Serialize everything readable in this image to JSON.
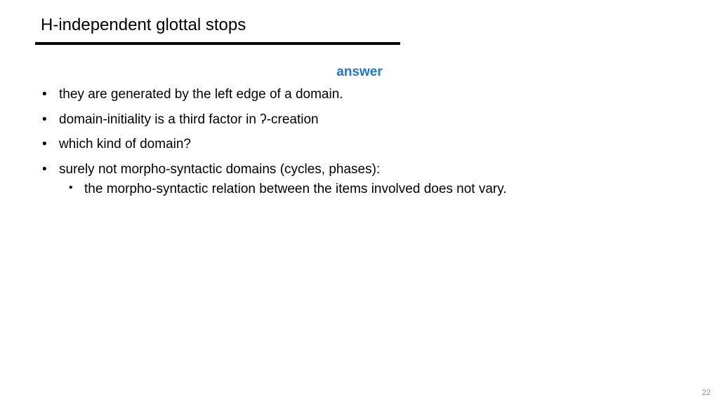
{
  "title": "H-independent glottal stops",
  "answer_label": "answer",
  "bullets": {
    "b1": "they are generated by the left edge of a domain.",
    "b2": "domain-initiality is a third factor in ʔ-creation",
    "b3": "which kind of domain?",
    "b4": "surely not morpho-syntactic domains (cycles, phases):",
    "b4_sub1": "the morpho-syntactic relation between the items involved does not vary."
  },
  "page_number": "22",
  "colors": {
    "accent": "#1f77c9",
    "text": "#000000",
    "bg": "#ffffff",
    "page_num": "#888888"
  }
}
